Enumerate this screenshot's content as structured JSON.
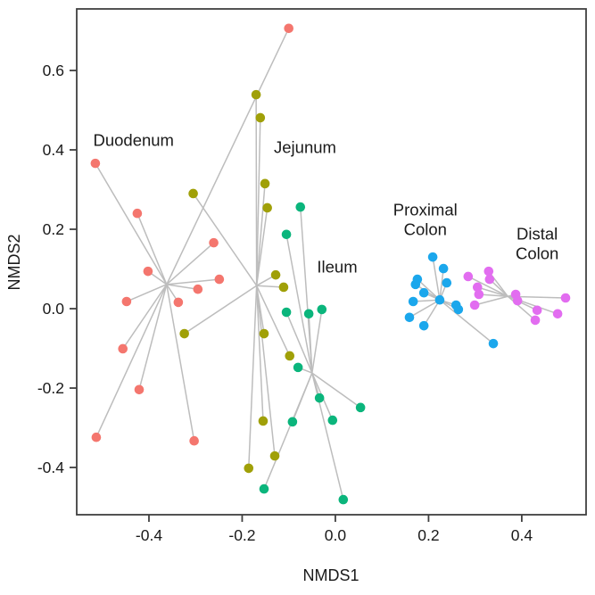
{
  "figure": {
    "background": "#ffffff",
    "box_color": "#404040",
    "text_color": "#1a1a1a",
    "spider_line_color": "#bdbdbd"
  },
  "chart_data": {
    "type": "scatter",
    "title": "",
    "xlabel": "NMDS1",
    "ylabel": "NMDS2",
    "xlim": [
      -0.555,
      0.538
    ],
    "ylim": [
      -0.519,
      0.755
    ],
    "x_ticks": [
      -0.4,
      -0.2,
      0.0,
      0.2,
      0.4
    ],
    "y_ticks": [
      -0.4,
      -0.2,
      0.0,
      0.2,
      0.4,
      0.6
    ],
    "grid": false,
    "legend_position": "none-direct-labels",
    "style": "ordination spider plot: each point joined to its group centroid by a gray segment",
    "groups": [
      {
        "name": "Duodenum",
        "color": "#f4766e",
        "centroid": [
          -0.362,
          0.061
        ],
        "label": [
          {
            "text": "Duodenum",
            "x": -0.433,
            "y": 0.425
          }
        ],
        "points": [
          [
            -0.515,
            0.366
          ],
          [
            -0.425,
            0.24
          ],
          [
            -0.261,
            0.166
          ],
          [
            -0.402,
            0.094
          ],
          [
            -0.448,
            0.018
          ],
          [
            -0.337,
            0.016
          ],
          [
            -0.295,
            0.049
          ],
          [
            -0.249,
            0.074
          ],
          [
            -0.456,
            -0.101
          ],
          [
            -0.421,
            -0.204
          ],
          [
            -0.513,
            -0.324
          ],
          [
            -0.303,
            -0.333
          ],
          [
            -0.1,
            0.706
          ]
        ]
      },
      {
        "name": "Jejunum",
        "color": "#a0a008",
        "centroid": [
          -0.169,
          0.058
        ],
        "label": [
          {
            "text": "Jejunum",
            "x": -0.065,
            "y": 0.407
          }
        ],
        "points": [
          [
            -0.17,
            0.539
          ],
          [
            -0.161,
            0.481
          ],
          [
            -0.305,
            0.29
          ],
          [
            -0.151,
            0.315
          ],
          [
            -0.146,
            0.254
          ],
          [
            -0.128,
            0.085
          ],
          [
            -0.111,
            0.054
          ],
          [
            -0.324,
            -0.063
          ],
          [
            -0.153,
            -0.063
          ],
          [
            -0.098,
            -0.119
          ],
          [
            -0.155,
            -0.283
          ],
          [
            -0.13,
            -0.371
          ],
          [
            -0.186,
            -0.402
          ]
        ]
      },
      {
        "name": "Ileum",
        "color": "#0bb57c",
        "centroid": [
          -0.05,
          -0.162
        ],
        "label": [
          {
            "text": "Ileum",
            "x": 0.004,
            "y": 0.106
          }
        ],
        "points": [
          [
            -0.075,
            0.256
          ],
          [
            -0.105,
            0.187
          ],
          [
            -0.105,
            -0.009
          ],
          [
            -0.057,
            -0.013
          ],
          [
            -0.029,
            -0.002
          ],
          [
            -0.08,
            -0.148
          ],
          [
            -0.034,
            -0.225
          ],
          [
            0.054,
            -0.249
          ],
          [
            -0.092,
            -0.285
          ],
          [
            -0.006,
            -0.281
          ],
          [
            -0.153,
            -0.454
          ],
          [
            0.017,
            -0.481
          ]
        ]
      },
      {
        "name": "Proximal Colon",
        "color": "#1ba7ec",
        "centroid": [
          0.224,
          0.022
        ],
        "label": [
          {
            "text": "Proximal",
            "x": 0.193,
            "y": 0.249
          },
          {
            "text": "Colon",
            "x": 0.193,
            "y": 0.2
          }
        ],
        "points": [
          [
            0.209,
            0.13
          ],
          [
            0.232,
            0.101
          ],
          [
            0.239,
            0.065
          ],
          [
            0.176,
            0.074
          ],
          [
            0.172,
            0.061
          ],
          [
            0.19,
            0.04
          ],
          [
            0.167,
            0.018
          ],
          [
            0.224,
            0.022
          ],
          [
            0.259,
            0.009
          ],
          [
            0.264,
            -0.002
          ],
          [
            0.159,
            -0.022
          ],
          [
            0.19,
            -0.043
          ],
          [
            0.339,
            -0.088
          ]
        ]
      },
      {
        "name": "Distal Colon",
        "color": "#e26df0",
        "centroid": [
          0.37,
          0.031
        ],
        "label": [
          {
            "text": "Distal",
            "x": 0.433,
            "y": 0.189
          },
          {
            "text": "Colon",
            "x": 0.433,
            "y": 0.139
          }
        ],
        "points": [
          [
            0.285,
            0.081
          ],
          [
            0.329,
            0.094
          ],
          [
            0.331,
            0.074
          ],
          [
            0.305,
            0.054
          ],
          [
            0.308,
            0.036
          ],
          [
            0.299,
            0.009
          ],
          [
            0.387,
            0.036
          ],
          [
            0.391,
            0.02
          ],
          [
            0.433,
            -0.004
          ],
          [
            0.429,
            -0.029
          ],
          [
            0.477,
            -0.013
          ],
          [
            0.494,
            0.027
          ]
        ]
      }
    ]
  }
}
